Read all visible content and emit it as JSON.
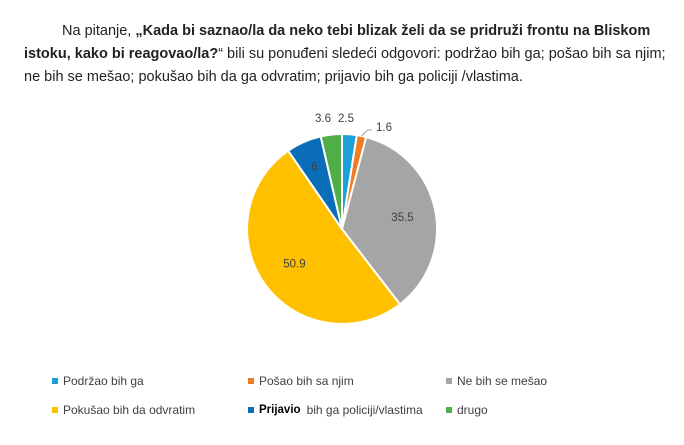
{
  "intro": {
    "prefix": "Na pitanje, ",
    "question": "„Kada bi saznao/la da neko tebi blizak želi da se pridruži frontu na Bliskom istoku, kako bi reagovao/la?",
    "suffix": "“ bili su ponuđeni sledeći odgovori: podržao bih ga; pošao bih sa njim; ne bih se mešao; pokušao bih da ga odvratim; prijavio bih ga policiji /vlastima."
  },
  "chart_data": {
    "type": "pie",
    "slices": [
      {
        "label": "Podržao bih ga",
        "value": 2.5,
        "display": "2.5",
        "color": "#1BA1D8"
      },
      {
        "label": "Pošao bih sa njim",
        "value": 1.6,
        "display": "1.6",
        "color": "#F07B22"
      },
      {
        "label": "Ne bih se mešao",
        "value": 35.5,
        "display": "35.5",
        "color": "#A5A5A5"
      },
      {
        "label": "Pokušao bih da odvratim",
        "value": 50.9,
        "display": "50.9",
        "color": "#FFC000"
      },
      {
        "label": "Prijavio bih ga policiji/vlastima",
        "value": 6,
        "display": "6",
        "color": "#0A6DB8"
      },
      {
        "label": "drugo",
        "value": 3.6,
        "display": "3.6",
        "color": "#4FAE48"
      }
    ],
    "legend": [
      {
        "label": "Podržao bih ga",
        "color": "#1BA1D8"
      },
      {
        "label": "Pošao bih sa njim",
        "color": "#F07B22"
      },
      {
        "label": "Ne bih se mešao",
        "color": "#A5A5A5"
      },
      {
        "label": "Pokušao bih da odvratim",
        "color": "#FFC000"
      },
      {
        "bold": "Prijavio",
        "label": "bih ga policiji/vlastima",
        "color": "#0A6DB8"
      },
      {
        "label": "drugo",
        "color": "#4FAE48"
      }
    ],
    "legend_position": "bottom"
  }
}
